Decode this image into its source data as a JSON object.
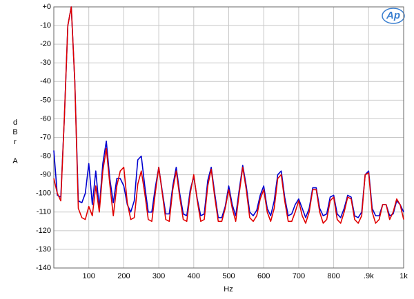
{
  "chart_data": {
    "type": "line",
    "logo": "Ap",
    "x_label": "Hz",
    "y_label": "dBr A",
    "xlim": [
      0,
      1000
    ],
    "ylim": [
      -140,
      0
    ],
    "xticks": [
      100,
      200,
      300,
      400,
      500,
      600,
      700,
      800,
      {
        "value": 900,
        "label": ".9k"
      },
      {
        "value": 1000,
        "label": "1k"
      }
    ],
    "yticks": [
      {
        "value": 0,
        "label": "+0"
      },
      -10,
      -20,
      -30,
      -40,
      -50,
      -60,
      -70,
      -80,
      -90,
      -100,
      -110,
      -120,
      -130,
      -140
    ],
    "grid": true,
    "x": [
      0,
      10,
      20,
      30,
      40,
      50,
      60,
      70,
      80,
      90,
      100,
      110,
      120,
      130,
      140,
      150,
      160,
      170,
      180,
      190,
      200,
      210,
      220,
      230,
      240,
      250,
      260,
      270,
      280,
      290,
      300,
      310,
      320,
      330,
      340,
      350,
      360,
      370,
      380,
      390,
      400,
      410,
      420,
      430,
      440,
      450,
      460,
      470,
      480,
      490,
      500,
      510,
      520,
      530,
      540,
      550,
      560,
      570,
      580,
      590,
      600,
      610,
      620,
      630,
      640,
      650,
      660,
      670,
      680,
      690,
      700,
      710,
      720,
      730,
      740,
      750,
      760,
      770,
      780,
      790,
      800,
      810,
      820,
      830,
      840,
      850,
      860,
      870,
      880,
      890,
      900,
      910,
      920,
      930,
      940,
      950,
      960,
      970,
      980,
      990,
      1000
    ],
    "series": [
      {
        "color": "#0000d0",
        "values": [
          -77,
          -101,
          -102,
          -60,
          -10,
          0,
          -40,
          -104,
          -105,
          -100,
          -84,
          -106,
          -88,
          -108,
          -84,
          -72,
          -92,
          -105,
          -92,
          -92,
          -96,
          -106,
          -110,
          -104,
          -82,
          -80,
          -96,
          -110,
          -110,
          -97,
          -86,
          -99,
          -111,
          -111,
          -96,
          -86,
          -100,
          -111,
          -112,
          -98,
          -91,
          -103,
          -112,
          -111,
          -93,
          -86,
          -100,
          -113,
          -113,
          -107,
          -96,
          -106,
          -112,
          -98,
          -85,
          -96,
          -110,
          -112,
          -109,
          -101,
          -96,
          -108,
          -112,
          -104,
          -90,
          -88,
          -102,
          -112,
          -111,
          -106,
          -103,
          -108,
          -113,
          -108,
          -97,
          -97,
          -108,
          -112,
          -111,
          -102,
          -101,
          -111,
          -113,
          -108,
          -101,
          -102,
          -112,
          -113,
          -110,
          -90,
          -88,
          -108,
          -112,
          -112,
          -106,
          -106,
          -112,
          -111,
          -104,
          -106,
          -110
        ]
      },
      {
        "color": "#e00000",
        "values": [
          -92,
          -100,
          -104,
          -60,
          -10,
          0,
          -40,
          -108,
          -113,
          -114,
          -107,
          -112,
          -96,
          -110,
          -88,
          -76,
          -95,
          -112,
          -96,
          -88,
          -86,
          -105,
          -114,
          -113,
          -95,
          -88,
          -100,
          -114,
          -115,
          -100,
          -86,
          -100,
          -114,
          -115,
          -98,
          -88,
          -102,
          -114,
          -115,
          -100,
          -90,
          -104,
          -115,
          -114,
          -96,
          -87,
          -102,
          -115,
          -115,
          -108,
          -98,
          -108,
          -115,
          -100,
          -86,
          -98,
          -113,
          -115,
          -112,
          -103,
          -98,
          -110,
          -115,
          -108,
          -92,
          -90,
          -104,
          -115,
          -115,
          -110,
          -104,
          -112,
          -116,
          -110,
          -98,
          -98,
          -110,
          -116,
          -114,
          -104,
          -102,
          -114,
          -116,
          -110,
          -102,
          -103,
          -114,
          -116,
          -112,
          -90,
          -89,
          -110,
          -116,
          -114,
          -106,
          -106,
          -114,
          -110,
          -103,
          -106,
          -114
        ]
      }
    ]
  }
}
